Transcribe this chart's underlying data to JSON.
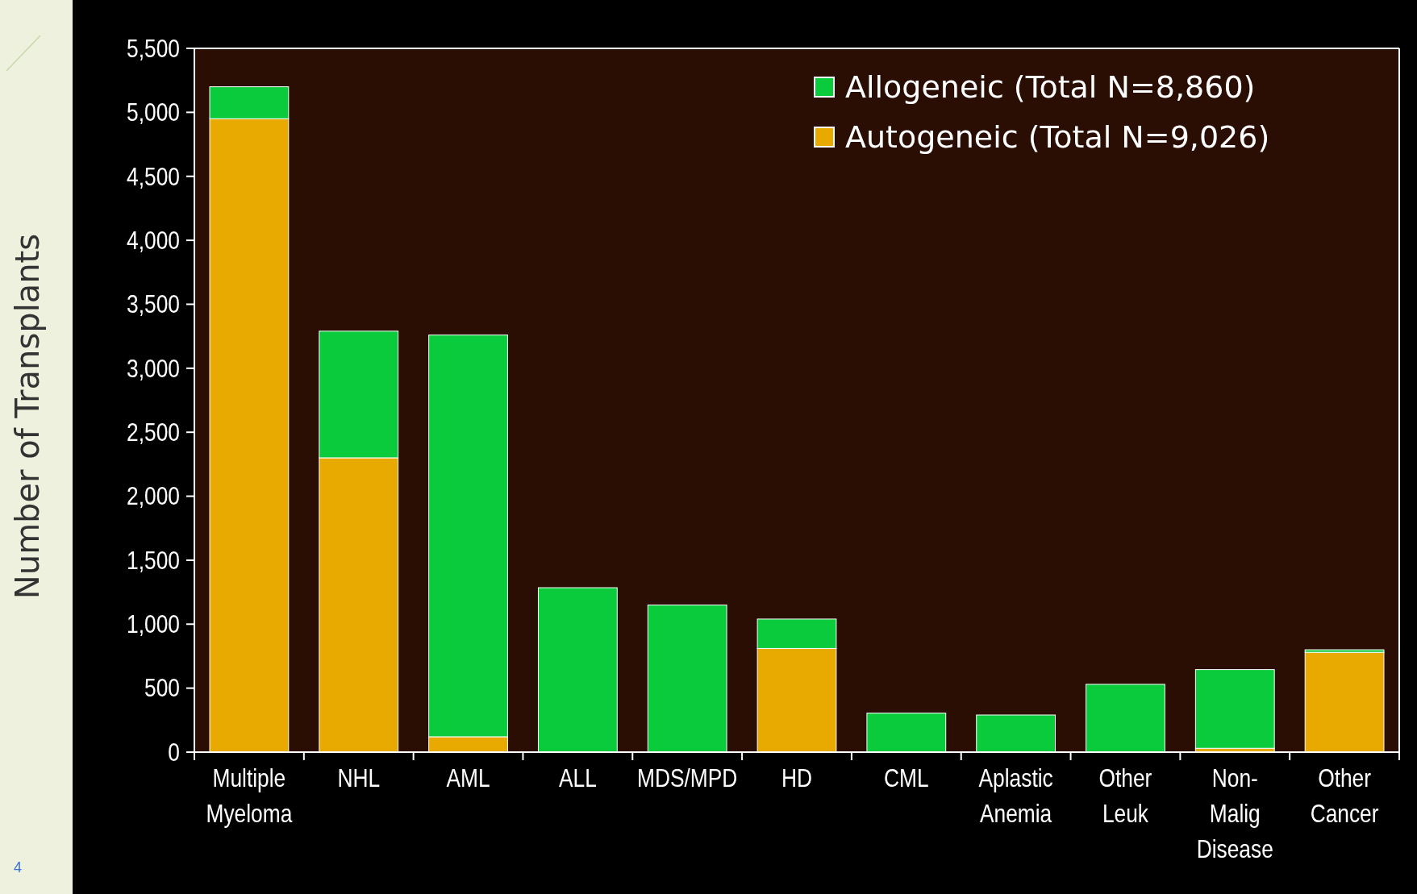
{
  "chart_data": {
    "type": "bar",
    "stacked": true,
    "ylabel": "Number of Transplants",
    "categories": [
      "Multiple Myeloma",
      "NHL",
      "AML",
      "ALL",
      "MDS/MPD",
      "HD",
      "CML",
      "Aplastic Anemia",
      "Other Leuk",
      "Non-Malig Disease",
      "Other Cancer"
    ],
    "series": [
      {
        "name": "Autogeneic (Total N=9,026)",
        "color": "#e8a900",
        "values": [
          4950,
          2300,
          120,
          null,
          null,
          810,
          null,
          null,
          null,
          30,
          780
        ]
      },
      {
        "name": "Allogeneic (Total N=8,860)",
        "color": "#0acb3c",
        "values": [
          250,
          990,
          3140,
          1285,
          1150,
          230,
          305,
          290,
          530,
          615,
          20
        ]
      }
    ],
    "ylim": [
      0,
      5500
    ],
    "yticks": [
      {
        "value": 0,
        "label": "0"
      },
      {
        "value": 500,
        "label": "500"
      },
      {
        "value": 1000,
        "label": "1,000"
      },
      {
        "value": 1500,
        "label": "1,500"
      },
      {
        "value": 2000,
        "label": "2,000"
      },
      {
        "value": 2500,
        "label": "2,500"
      },
      {
        "value": 3000,
        "label": "3,000"
      },
      {
        "value": 3500,
        "label": "3,500"
      },
      {
        "value": 4000,
        "label": "4,000"
      },
      {
        "value": 4500,
        "label": "4,500"
      },
      {
        "value": 5000,
        "label": "5,000"
      },
      {
        "value": 5500,
        "label": "5,500"
      }
    ],
    "legend": "top right",
    "grid": false,
    "annotations": [
      "4"
    ]
  }
}
